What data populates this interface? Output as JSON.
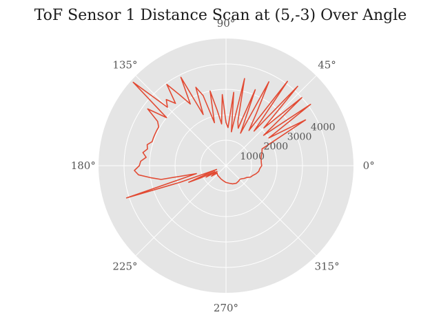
{
  "chart_data": {
    "type": "line",
    "projection": "polar",
    "title": "ToF Sensor 1 Distance Scan at (5,-3) Over Angle",
    "theta_ticks": [
      {
        "deg": 0,
        "label": "0°"
      },
      {
        "deg": 45,
        "label": "45°"
      },
      {
        "deg": 90,
        "label": "90°"
      },
      {
        "deg": 135,
        "label": "135°"
      },
      {
        "deg": 180,
        "label": "180°"
      },
      {
        "deg": 225,
        "label": "225°"
      },
      {
        "deg": 270,
        "label": "270°"
      },
      {
        "deg": 315,
        "label": "315°"
      }
    ],
    "r_ticks": [
      {
        "value": 1000,
        "label": "1000"
      },
      {
        "value": 2000,
        "label": "2000"
      },
      {
        "value": 3000,
        "label": "3000"
      },
      {
        "value": 4000,
        "label": "4000"
      }
    ],
    "rlim": [
      0,
      5000
    ],
    "r_label_angle_deg": 22.5,
    "grid": true,
    "background_color": "#e5e5e5",
    "grid_color": "#ffffff",
    "series": [
      {
        "color": "#e24a33",
        "theta_deg": [
          -45,
          -40,
          -35,
          -30,
          -25,
          -20,
          -15,
          -10,
          -5,
          0,
          5,
          10,
          15,
          20,
          25,
          30,
          33,
          36,
          39,
          42,
          45,
          48,
          51,
          54,
          57,
          60,
          63,
          66,
          69,
          72,
          75,
          78,
          81,
          84,
          87,
          90,
          93,
          96,
          99,
          102,
          105,
          108,
          111,
          114,
          117,
          120,
          123,
          126,
          129,
          132,
          135,
          138,
          141,
          144,
          147,
          150,
          153,
          156,
          159,
          162,
          165,
          168,
          171,
          174,
          177,
          180,
          183,
          186,
          189,
          192,
          195,
          198,
          200,
          202,
          204,
          206,
          208,
          210,
          213,
          216,
          220,
          225,
          230,
          240,
          250,
          260,
          270,
          280,
          290,
          300,
          310,
          315
        ],
        "r": [
          760,
          800,
          870,
          930,
          1060,
          1120,
          1220,
          1300,
          1330,
          1400,
          1390,
          1400,
          1430,
          1500,
          1560,
          3600,
          2000,
          4100,
          1900,
          4000,
          2100,
          4200,
          1750,
          4100,
          1650,
          2400,
          3700,
          1400,
          3200,
          1550,
          1800,
          3500,
          1350,
          2900,
          1500,
          1700,
          2800,
          1650,
          2200,
          3000,
          1750,
          2900,
          3300,
          2200,
          3900,
          2800,
          3300,
          3950,
          3150,
          3500,
          3250,
          4900,
          3000,
          3800,
          3200,
          3050,
          3050,
          3050,
          3050,
          3050,
          3200,
          3150,
          3300,
          3150,
          3350,
          3400,
          3600,
          3450,
          3000,
          2600,
          1200,
          4100,
          1900,
          400,
          1600,
          1100,
          500,
          900,
          420,
          700,
          450,
          480,
          500,
          520,
          560,
          600,
          660,
          700,
          760,
          800,
          780,
          760
        ]
      }
    ]
  }
}
